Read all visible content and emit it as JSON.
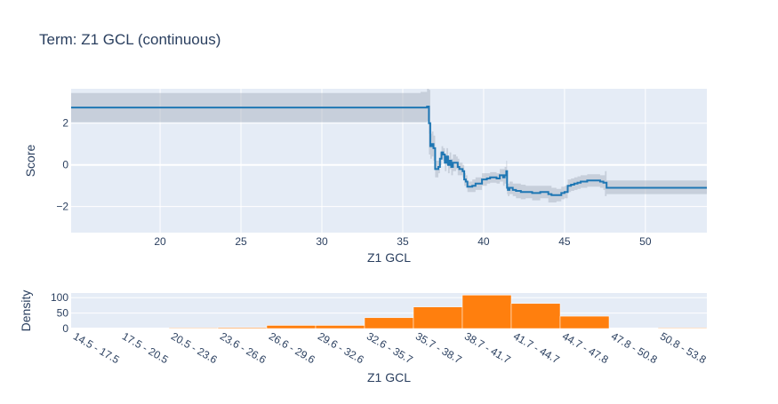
{
  "chart_data": [
    {
      "type": "line",
      "title": "Term: Z1 GCL (continuous)",
      "xlabel": "Z1 GCL",
      "ylabel": "Score",
      "xlim": [
        14.5,
        53.8
      ],
      "ylim": [
        -3.25,
        3.65
      ],
      "x_ticks": [
        20,
        25,
        30,
        35,
        40,
        45,
        50
      ],
      "y_ticks": [
        -2,
        0,
        2
      ],
      "grid": true,
      "series": [
        {
          "color": "#1f77b4",
          "x": [
            14.5,
            36.0,
            36.1,
            36.5,
            36.6,
            36.62,
            36.7,
            36.8,
            36.9,
            37.0,
            37.2,
            37.3,
            37.4,
            37.5,
            37.6,
            37.7,
            37.8,
            37.9,
            38.0,
            38.1,
            38.3,
            38.4,
            38.5,
            38.7,
            38.8,
            38.9,
            39.0,
            39.3,
            39.5,
            39.7,
            39.9,
            40.0,
            40.2,
            40.4,
            40.6,
            40.8,
            41.0,
            41.2,
            41.3,
            41.4,
            41.45,
            41.5,
            41.6,
            41.8,
            42.0,
            42.3,
            42.6,
            43.0,
            43.5,
            44.0,
            44.2,
            44.5,
            44.8,
            45.0,
            45.2,
            45.4,
            45.6,
            45.8,
            46.0,
            46.4,
            46.8,
            47.2,
            47.4,
            47.5,
            47.6,
            53.8
          ],
          "y": [
            2.75,
            2.75,
            2.75,
            2.8,
            2.8,
            2.0,
            0.9,
            1.0,
            0.8,
            -0.2,
            -0.1,
            0.3,
            0.6,
            0.5,
            0.1,
            0.4,
            0.0,
            0.2,
            -0.1,
            0.1,
            0.1,
            -0.1,
            -0.2,
            -0.3,
            -0.7,
            -0.8,
            -1.05,
            -1.0,
            -0.9,
            -0.9,
            -0.7,
            -0.7,
            -0.65,
            -0.6,
            -0.6,
            -0.65,
            -0.5,
            -0.6,
            -0.5,
            -0.3,
            -1.1,
            -1.2,
            -1.1,
            -1.2,
            -1.25,
            -1.3,
            -1.3,
            -1.35,
            -1.3,
            -1.4,
            -1.45,
            -1.45,
            -1.35,
            -1.3,
            -1.0,
            -0.95,
            -0.9,
            -0.85,
            -0.8,
            -0.75,
            -0.75,
            -0.8,
            -0.85,
            -0.85,
            -1.1,
            -1.1
          ],
          "band_lower": [
            2.05,
            2.05,
            2.05,
            2.1,
            1.5,
            0.5,
            0.3,
            0.4,
            0.2,
            -0.6,
            -0.4,
            0.0,
            0.3,
            0.2,
            -0.3,
            0.0,
            -0.4,
            -0.2,
            -0.5,
            -0.3,
            -0.2,
            -0.5,
            -0.5,
            -0.6,
            -1.0,
            -1.1,
            -1.3,
            -1.3,
            -1.2,
            -1.2,
            -1.0,
            -1.0,
            -0.9,
            -0.85,
            -0.85,
            -0.9,
            -0.8,
            -1.0,
            -0.9,
            -0.8,
            -1.4,
            -1.5,
            -1.4,
            -1.5,
            -1.6,
            -1.65,
            -1.6,
            -1.7,
            -1.6,
            -1.8,
            -1.8,
            -1.75,
            -1.65,
            -1.6,
            -1.3,
            -1.25,
            -1.2,
            -1.15,
            -1.1,
            -1.05,
            -1.05,
            -1.1,
            -1.2,
            -1.5,
            -1.4,
            -1.4
          ],
          "band_upper": [
            3.45,
            3.45,
            3.5,
            3.65,
            3.65,
            3.6,
            1.5,
            1.6,
            1.4,
            0.2,
            0.2,
            0.6,
            0.9,
            0.8,
            0.5,
            0.8,
            0.4,
            0.6,
            0.3,
            0.5,
            0.4,
            0.3,
            0.1,
            0.0,
            -0.4,
            -0.5,
            -0.8,
            -0.7,
            -0.6,
            -0.6,
            -0.4,
            -0.4,
            -0.4,
            -0.35,
            -0.35,
            -0.4,
            -0.2,
            -0.2,
            -0.1,
            0.2,
            -0.8,
            -0.9,
            -0.8,
            -0.9,
            -0.9,
            -0.95,
            -1.0,
            -1.0,
            -1.0,
            -1.0,
            -1.1,
            -1.15,
            -1.05,
            -1.0,
            -0.7,
            -0.65,
            -0.6,
            -0.55,
            -0.5,
            -0.45,
            -0.45,
            -0.5,
            -0.5,
            -0.3,
            -0.75,
            -0.75
          ]
        }
      ]
    },
    {
      "type": "bar",
      "xlabel": "Z1 GCL",
      "ylabel": "Density",
      "ylim": [
        0,
        115
      ],
      "y_ticks": [
        0,
        50,
        100
      ],
      "categories": [
        "14.5 - 17.5",
        "17.5 - 20.5",
        "20.5 - 23.6",
        "23.6 - 26.6",
        "26.6 - 29.6",
        "29.6 - 32.6",
        "32.6 - 35.7",
        "35.7 - 38.7",
        "38.7 - 41.7",
        "41.7 - 44.7",
        "44.7 - 47.8",
        "47.8 - 50.8",
        "50.8 - 53.8"
      ],
      "values": [
        0,
        1,
        2,
        3,
        10,
        10,
        35,
        70,
        108,
        81,
        40,
        0,
        2
      ],
      "color": "#ff7f0e"
    }
  ]
}
